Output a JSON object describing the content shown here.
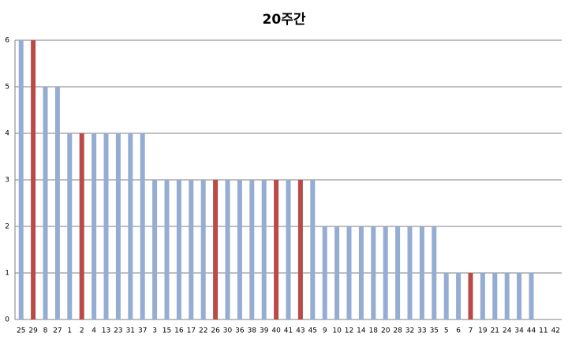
{
  "chart_data": {
    "type": "bar",
    "title": "20주간",
    "categories": [
      "25",
      "29",
      "8",
      "27",
      "1",
      "2",
      "4",
      "13",
      "23",
      "31",
      "37",
      "3",
      "15",
      "16",
      "17",
      "22",
      "26",
      "30",
      "36",
      "38",
      "39",
      "40",
      "41",
      "43",
      "45",
      "9",
      "10",
      "12",
      "14",
      "18",
      "20",
      "28",
      "32",
      "33",
      "35",
      "5",
      "6",
      "7",
      "19",
      "21",
      "24",
      "34",
      "44",
      "11",
      "42"
    ],
    "values": [
      6,
      6,
      5,
      5,
      4,
      4,
      4,
      4,
      4,
      4,
      4,
      3,
      3,
      3,
      3,
      3,
      3,
      3,
      3,
      3,
      3,
      3,
      3,
      3,
      3,
      2,
      2,
      2,
      2,
      2,
      2,
      2,
      2,
      2,
      2,
      1,
      1,
      1,
      1,
      1,
      1,
      1,
      1,
      0,
      0
    ],
    "colors": [
      "#95acd3",
      "#b84a47",
      "#95acd3",
      "#95acd3",
      "#95acd3",
      "#b84a47",
      "#95acd3",
      "#95acd3",
      "#95acd3",
      "#95acd3",
      "#95acd3",
      "#95acd3",
      "#95acd3",
      "#95acd3",
      "#95acd3",
      "#95acd3",
      "#b84a47",
      "#95acd3",
      "#95acd3",
      "#95acd3",
      "#95acd3",
      "#b84a47",
      "#95acd3",
      "#b84a47",
      "#95acd3",
      "#95acd3",
      "#95acd3",
      "#95acd3",
      "#95acd3",
      "#95acd3",
      "#95acd3",
      "#95acd3",
      "#95acd3",
      "#95acd3",
      "#95acd3",
      "#95acd3",
      "#95acd3",
      "#b84a47",
      "#95acd3",
      "#95acd3",
      "#95acd3",
      "#95acd3",
      "#95acd3",
      "#95acd3",
      "#95acd3"
    ],
    "ylim": [
      0,
      6
    ],
    "yticks": [
      0,
      1,
      2,
      3,
      4,
      5,
      6
    ],
    "grid": true
  }
}
